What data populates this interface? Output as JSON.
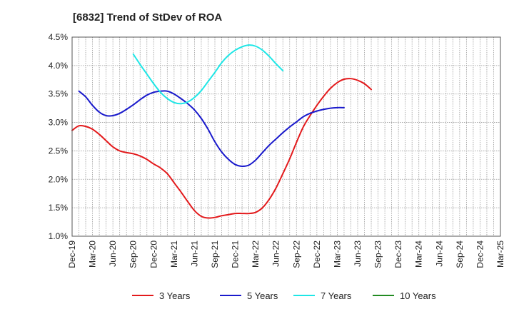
{
  "chart_data": {
    "type": "line",
    "title": "[6832]  Trend of StDev of ROA",
    "xlabel": "",
    "ylabel": "",
    "x_tick_labels": [
      "Dec-19",
      "Mar-20",
      "Jun-20",
      "Sep-20",
      "Dec-20",
      "Mar-21",
      "Jun-21",
      "Sep-21",
      "Dec-21",
      "Mar-22",
      "Jun-22",
      "Sep-22",
      "Dec-22",
      "Mar-23",
      "Jun-23",
      "Sep-23",
      "Dec-23",
      "Mar-24",
      "Jun-24",
      "Sep-24",
      "Dec-24",
      "Mar-25"
    ],
    "y_tick_labels": [
      "1.0%",
      "1.5%",
      "2.0%",
      "2.5%",
      "3.0%",
      "3.5%",
      "4.0%",
      "4.5%"
    ],
    "ylim": [
      1.0,
      4.5
    ],
    "grid": true,
    "legend_position": "bottom",
    "series": [
      {
        "name": "3 Years",
        "color": "#e31a1c",
        "start_index": 0,
        "values": [
          2.86,
          2.94,
          2.93,
          2.88,
          2.79,
          2.68,
          2.57,
          2.5,
          2.47,
          2.45,
          2.41,
          2.35,
          2.27,
          2.2,
          2.1,
          1.94,
          1.78,
          1.61,
          1.45,
          1.35,
          1.32,
          1.33,
          1.36,
          1.38,
          1.4,
          1.4,
          1.4,
          1.42,
          1.5,
          1.65,
          1.85,
          2.1,
          2.36,
          2.65,
          2.92,
          3.12,
          3.3,
          3.46,
          3.6,
          3.7,
          3.76,
          3.77,
          3.74,
          3.68,
          3.58
        ]
      },
      {
        "name": "5 Years",
        "color": "#1a1acc",
        "start_index": 1,
        "values": [
          3.55,
          3.45,
          3.3,
          3.18,
          3.12,
          3.12,
          3.16,
          3.23,
          3.31,
          3.4,
          3.48,
          3.53,
          3.55,
          3.55,
          3.5,
          3.42,
          3.33,
          3.22,
          3.07,
          2.88,
          2.66,
          2.48,
          2.35,
          2.26,
          2.23,
          2.25,
          2.34,
          2.47,
          2.6,
          2.71,
          2.82,
          2.92,
          3.01,
          3.1,
          3.16,
          3.2,
          3.23,
          3.25,
          3.26,
          3.26
        ]
      },
      {
        "name": "7 Years",
        "color": "#1ee6e6",
        "start_index": 9,
        "values": [
          4.2,
          4.02,
          3.85,
          3.68,
          3.53,
          3.42,
          3.35,
          3.33,
          3.36,
          3.44,
          3.56,
          3.72,
          3.88,
          4.05,
          4.18,
          4.27,
          4.33,
          4.36,
          4.34,
          4.27,
          4.16,
          4.03,
          3.91
        ]
      },
      {
        "name": "10 Years",
        "color": "#228b22",
        "start_index": 0,
        "values": []
      }
    ]
  }
}
